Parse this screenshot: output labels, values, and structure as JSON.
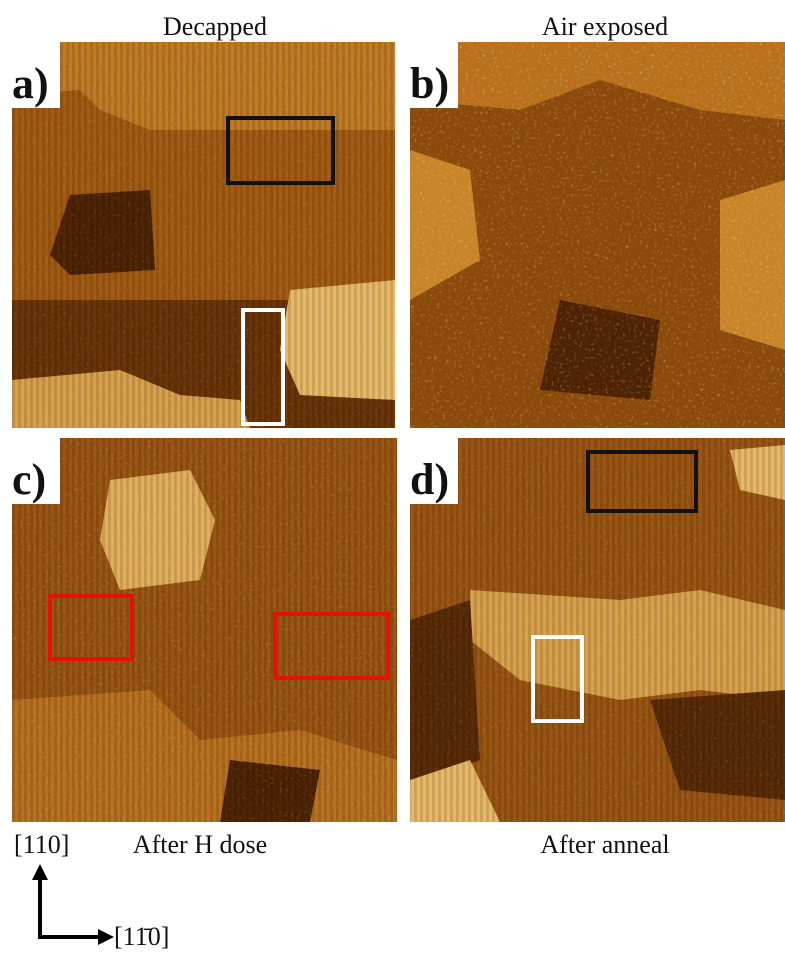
{
  "panels": [
    {
      "label": "a)",
      "caption": "Decapped"
    },
    {
      "label": "b)",
      "caption": "Air exposed"
    },
    {
      "label": "c)",
      "caption": "After H dose"
    },
    {
      "label": "d)",
      "caption": "After anneal"
    }
  ],
  "axes": {
    "vertical": "[110]",
    "horizontal": "[11̄0]"
  }
}
